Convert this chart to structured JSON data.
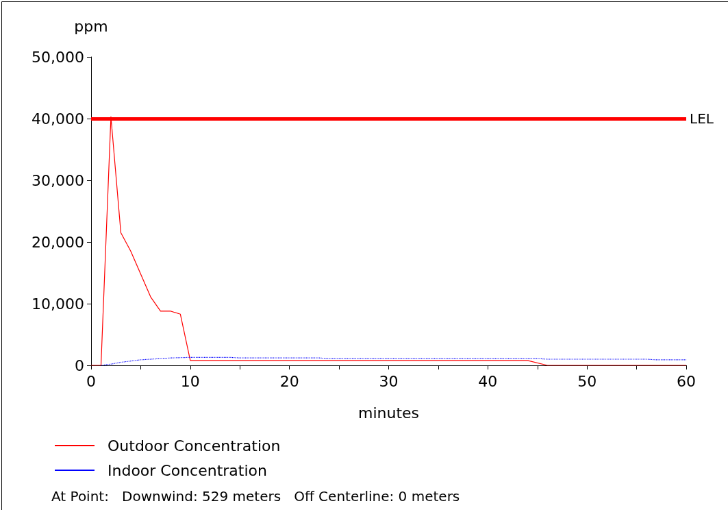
{
  "chart_data": {
    "type": "line",
    "ylabel": "ppm",
    "xlabel": "minutes",
    "xlim": [
      0,
      60
    ],
    "xticks": [
      0,
      10,
      20,
      30,
      40,
      50,
      60
    ],
    "ylim": [
      0,
      50000
    ],
    "yticks": [
      {
        "value": 0,
        "label": "0"
      },
      {
        "value": 10000,
        "label": "10,000"
      },
      {
        "value": 20000,
        "label": "20,000"
      },
      {
        "value": 30000,
        "label": "30,000"
      },
      {
        "value": 40000,
        "label": "40,000"
      },
      {
        "value": 50000,
        "label": "50,000"
      }
    ],
    "grid": false,
    "legend": "bottom",
    "marker": "none",
    "series": [
      {
        "name": "Outdoor Concentration",
        "color": "#ff0000",
        "line_style": "solid",
        "x": [
          0,
          1,
          2,
          3,
          4,
          5,
          6,
          7,
          8,
          9,
          10,
          44,
          46,
          60
        ],
        "values": [
          0,
          0,
          40300,
          21500,
          18500,
          14800,
          11100,
          8800,
          8800,
          8300,
          800,
          800,
          0,
          0
        ]
      },
      {
        "name": "Indoor Concentration",
        "color": "#0000ff",
        "line_style": "dotted",
        "x": [
          1,
          2,
          3,
          4,
          5,
          6,
          8,
          10,
          14,
          15,
          23,
          24,
          45,
          46,
          56,
          57,
          60
        ],
        "values": [
          0,
          200,
          500,
          700,
          900,
          1000,
          1200,
          1300,
          1300,
          1200,
          1200,
          1100,
          1100,
          1000,
          1000,
          900,
          900
        ]
      }
    ],
    "ref_lines": [
      {
        "axis": "y",
        "value": 40000,
        "label": "LEL",
        "color": "#ff0000"
      }
    ],
    "annotations": [
      "At Point:   Downwind: 529 meters   Off Centerline: 0 meters"
    ]
  }
}
